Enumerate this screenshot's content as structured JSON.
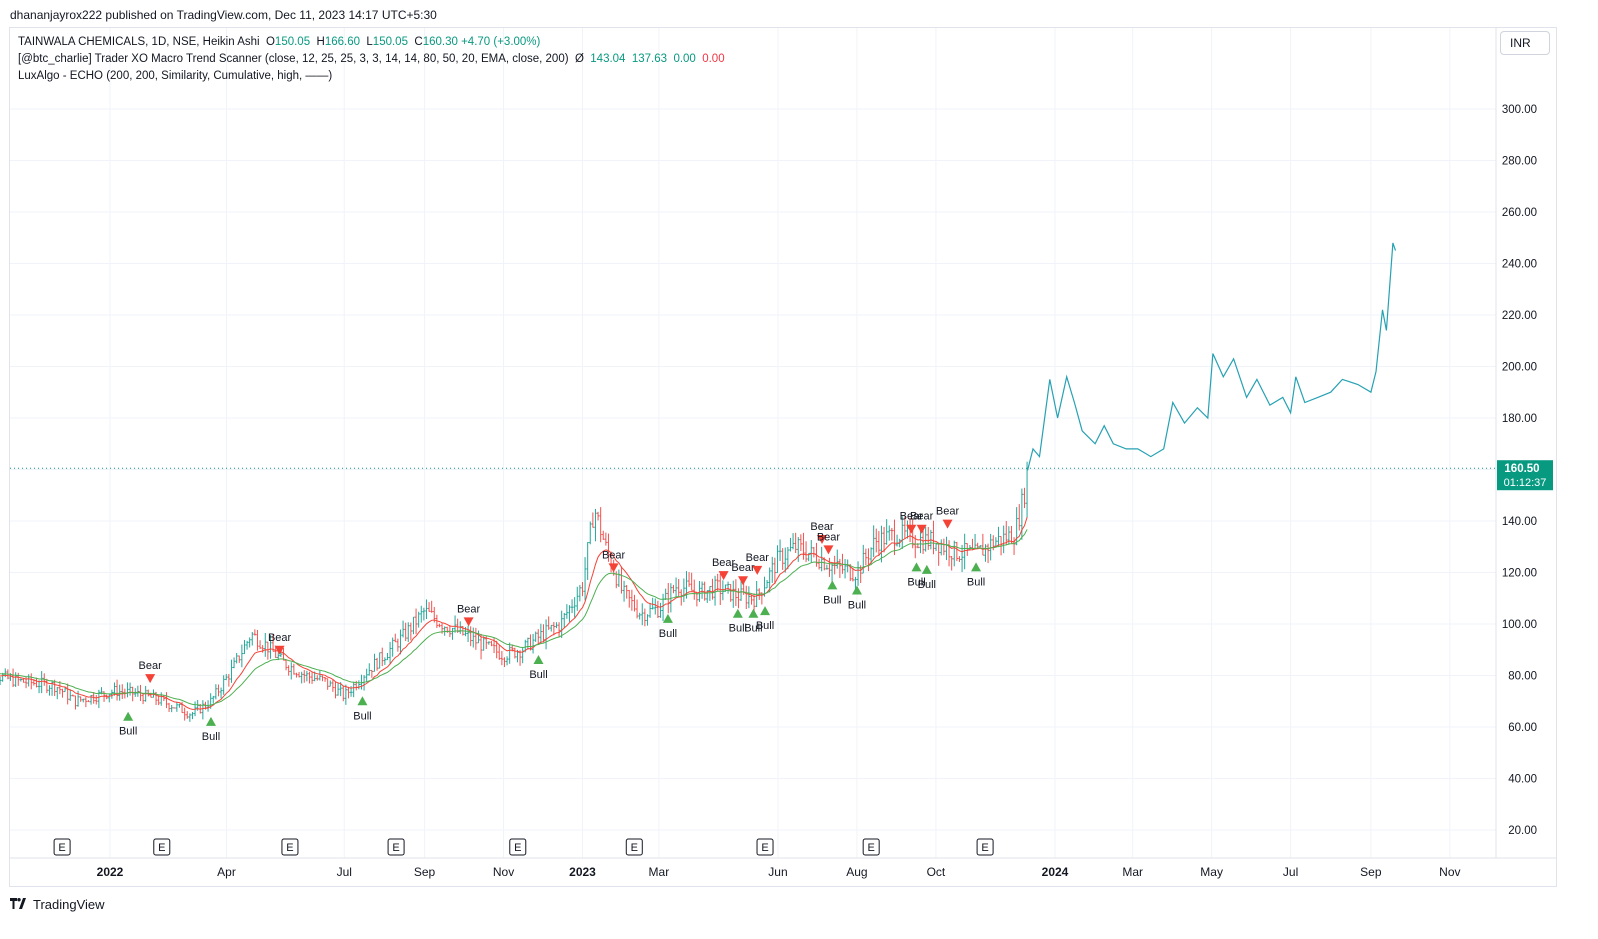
{
  "header": {
    "published_text": "dhananjayrox222 published on TradingView.com, Dec 11, 2023 14:17 UTC+5:30"
  },
  "legend": {
    "symbol_line": {
      "prefix": "TAINWALA CHEMICALS, 1D, NSE, Heikin Ashi",
      "o_label": "O",
      "o_value": "150.05",
      "h_label": "H",
      "h_value": "166.60",
      "l_label": "L",
      "l_value": "150.05",
      "c_label": "C",
      "c_value": "160.30",
      "change": "+4.70 (+3.00%)"
    },
    "indicator1": {
      "text": "[@btc_charlie] Trader XO Macro Trend Scanner (close, 12, 25, 25, 3, 3, 14, 14, 80, 50, 20, EMA, close, 200)",
      "symbol": "Ø",
      "v1": "143.04",
      "v2": "137.63",
      "v3": "0.00",
      "v4": "0.00"
    },
    "indicator2": {
      "text": "LuxAlgo - ECHO (200, 200, Similarity, Cumulative, high, ——)"
    }
  },
  "currency_selector": "INR",
  "price_label": {
    "price": "160.50",
    "countdown": "01:12:37"
  },
  "footer": {
    "logo_mark": "𝟭𝟳",
    "logo_text": "TradingView"
  },
  "colors": {
    "up": "#26a69a",
    "down": "#ef5350",
    "ema_fast": "#f44336",
    "ema_slow": "#4caf50",
    "echo": "#26a1b3",
    "grid": "#f0f3fa",
    "current_price": "#089981",
    "bull": "#4caf50",
    "bear": "#f44336"
  },
  "chart_data": {
    "type": "line",
    "title": "TAINWALA CHEMICALS, 1D, NSE, Heikin Ashi",
    "y_axis": {
      "ticks": [
        20,
        40,
        60,
        80,
        100,
        120,
        140,
        160,
        180,
        200,
        220,
        240,
        260,
        280,
        300
      ],
      "tick_labels": [
        "20.00",
        "40.00",
        "60.00",
        "80.00",
        "100.00",
        "120.00",
        "140.00",
        "160.00",
        "180.00",
        "200.00",
        "220.00",
        "240.00",
        "260.00",
        "280.00",
        "300.00"
      ],
      "range": [
        10,
        325
      ],
      "current_price": 160.5
    },
    "x_axis": {
      "labels": [
        {
          "text": "2022",
          "date": "2022-01-01",
          "bold": true
        },
        {
          "text": "Apr",
          "date": "2022-04-01",
          "bold": false
        },
        {
          "text": "Jul",
          "date": "2022-07-01",
          "bold": false
        },
        {
          "text": "Sep",
          "date": "2022-09-01",
          "bold": false
        },
        {
          "text": "Nov",
          "date": "2022-11-01",
          "bold": false
        },
        {
          "text": "2023",
          "date": "2023-01-01",
          "bold": true
        },
        {
          "text": "Mar",
          "date": "2023-03-01",
          "bold": false
        },
        {
          "text": "Jun",
          "date": "2023-06-01",
          "bold": false
        },
        {
          "text": "Aug",
          "date": "2023-08-01",
          "bold": false
        },
        {
          "text": "Oct",
          "date": "2023-10-01",
          "bold": false
        },
        {
          "text": "2024",
          "date": "2024-01-01",
          "bold": true
        },
        {
          "text": "Mar",
          "date": "2024-03-01",
          "bold": false
        },
        {
          "text": "May",
          "date": "2024-05-01",
          "bold": false
        },
        {
          "text": "Jul",
          "date": "2024-07-01",
          "bold": false
        },
        {
          "text": "Sep",
          "date": "2024-09-01",
          "bold": false
        },
        {
          "text": "Nov",
          "date": "2024-11-01",
          "bold": false
        }
      ]
    },
    "earnings_markers": [
      {
        "date": "2021-11-25",
        "label": "E"
      },
      {
        "date": "2022-02-10",
        "label": "E"
      },
      {
        "date": "2022-05-20",
        "label": "E"
      },
      {
        "date": "2022-08-10",
        "label": "E"
      },
      {
        "date": "2022-11-12",
        "label": "E"
      },
      {
        "date": "2023-02-10",
        "label": "E"
      },
      {
        "date": "2023-05-22",
        "label": "E"
      },
      {
        "date": "2023-08-12",
        "label": "E"
      },
      {
        "date": "2023-11-08",
        "label": "E"
      }
    ],
    "series": [
      {
        "name": "TAINWALA CHEMICALS",
        "kind": "heikin-ashi-bars",
        "points": [
          [
            "2021-09-20",
            82
          ],
          [
            "2021-10-05",
            80
          ],
          [
            "2021-10-20",
            78
          ],
          [
            "2021-11-05",
            77
          ],
          [
            "2021-11-20",
            76
          ],
          [
            "2021-12-05",
            70
          ],
          [
            "2021-12-20",
            72
          ],
          [
            "2022-01-05",
            74
          ],
          [
            "2022-01-20",
            73
          ],
          [
            "2022-02-05",
            71
          ],
          [
            "2022-02-20",
            68
          ],
          [
            "2022-03-05",
            65
          ],
          [
            "2022-03-20",
            70
          ],
          [
            "2022-04-05",
            82
          ],
          [
            "2022-04-20",
            96
          ],
          [
            "2022-05-01",
            92
          ],
          [
            "2022-05-15",
            85
          ],
          [
            "2022-06-01",
            80
          ],
          [
            "2022-06-15",
            78
          ],
          [
            "2022-07-01",
            72
          ],
          [
            "2022-07-15",
            80
          ],
          [
            "2022-08-01",
            88
          ],
          [
            "2022-08-15",
            95
          ],
          [
            "2022-09-01",
            105
          ],
          [
            "2022-09-15",
            100
          ],
          [
            "2022-10-01",
            96
          ],
          [
            "2022-10-15",
            92
          ],
          [
            "2022-11-01",
            88
          ],
          [
            "2022-11-15",
            90
          ],
          [
            "2022-12-01",
            96
          ],
          [
            "2022-12-15",
            100
          ],
          [
            "2023-01-01",
            115
          ],
          [
            "2023-01-10",
            145
          ],
          [
            "2023-01-20",
            128
          ],
          [
            "2023-02-01",
            112
          ],
          [
            "2023-02-15",
            104
          ],
          [
            "2023-03-01",
            106
          ],
          [
            "2023-03-15",
            115
          ],
          [
            "2023-04-01",
            112
          ],
          [
            "2023-04-15",
            114
          ],
          [
            "2023-05-01",
            111
          ],
          [
            "2023-05-15",
            110
          ],
          [
            "2023-06-01",
            125
          ],
          [
            "2023-06-15",
            130
          ],
          [
            "2023-07-01",
            126
          ],
          [
            "2023-07-15",
            122
          ],
          [
            "2023-08-01",
            120
          ],
          [
            "2023-08-15",
            132
          ],
          [
            "2023-09-01",
            135
          ],
          [
            "2023-09-15",
            133
          ],
          [
            "2023-10-01",
            132
          ],
          [
            "2023-10-15",
            128
          ],
          [
            "2023-11-01",
            127
          ],
          [
            "2023-11-15",
            132
          ],
          [
            "2023-12-01",
            135
          ],
          [
            "2023-12-08",
            150
          ],
          [
            "2023-12-11",
            160.3
          ]
        ]
      },
      {
        "name": "LuxAlgo - ECHO",
        "kind": "line",
        "points": [
          [
            "2023-12-11",
            160
          ],
          [
            "2023-12-15",
            168
          ],
          [
            "2023-12-20",
            165
          ],
          [
            "2023-12-28",
            195
          ],
          [
            "2024-01-03",
            180
          ],
          [
            "2024-01-10",
            196
          ],
          [
            "2024-01-16",
            186
          ],
          [
            "2024-01-22",
            175
          ],
          [
            "2024-02-01",
            170
          ],
          [
            "2024-02-08",
            177
          ],
          [
            "2024-02-15",
            170
          ],
          [
            "2024-02-25",
            168
          ],
          [
            "2024-03-05",
            168
          ],
          [
            "2024-03-15",
            165
          ],
          [
            "2024-03-25",
            168
          ],
          [
            "2024-04-01",
            186
          ],
          [
            "2024-04-10",
            178
          ],
          [
            "2024-04-20",
            184
          ],
          [
            "2024-04-28",
            180
          ],
          [
            "2024-05-02",
            205
          ],
          [
            "2024-05-10",
            196
          ],
          [
            "2024-05-18",
            203
          ],
          [
            "2024-05-28",
            188
          ],
          [
            "2024-06-05",
            195
          ],
          [
            "2024-06-15",
            185
          ],
          [
            "2024-06-25",
            188
          ],
          [
            "2024-07-01",
            182
          ],
          [
            "2024-07-05",
            196
          ],
          [
            "2024-07-12",
            186
          ],
          [
            "2024-07-22",
            188
          ],
          [
            "2024-08-01",
            190
          ],
          [
            "2024-08-10",
            195
          ],
          [
            "2024-08-22",
            193
          ],
          [
            "2024-09-01",
            190
          ],
          [
            "2024-09-05",
            198
          ],
          [
            "2024-09-10",
            222
          ],
          [
            "2024-09-13",
            214
          ],
          [
            "2024-09-18",
            248
          ],
          [
            "2024-09-20",
            245
          ]
        ]
      }
    ],
    "signals": [
      {
        "date": "2022-01-15",
        "type": "Bull",
        "value": 64
      },
      {
        "date": "2022-02-01",
        "type": "Bear",
        "value": 79
      },
      {
        "date": "2022-03-20",
        "type": "Bull",
        "value": 62
      },
      {
        "date": "2022-05-12",
        "type": "Bear",
        "value": 90
      },
      {
        "date": "2022-07-15",
        "type": "Bull",
        "value": 70
      },
      {
        "date": "2022-10-05",
        "type": "Bear",
        "value": 101
      },
      {
        "date": "2022-11-28",
        "type": "Bull",
        "value": 86
      },
      {
        "date": "2023-01-25",
        "type": "Bear",
        "value": 122
      },
      {
        "date": "2023-03-08",
        "type": "Bull",
        "value": 102
      },
      {
        "date": "2023-04-20",
        "type": "Bear",
        "value": 119
      },
      {
        "date": "2023-05-01",
        "type": "Bull",
        "value": 104
      },
      {
        "date": "2023-05-05",
        "type": "Bear",
        "value": 117
      },
      {
        "date": "2023-05-13",
        "type": "Bull",
        "value": 104
      },
      {
        "date": "2023-05-16",
        "type": "Bear",
        "value": 121
      },
      {
        "date": "2023-05-22",
        "type": "Bull",
        "value": 105
      },
      {
        "date": "2023-07-05",
        "type": "Bear",
        "value": 133
      },
      {
        "date": "2023-07-10",
        "type": "Bear",
        "value": 129
      },
      {
        "date": "2023-07-13",
        "type": "Bull",
        "value": 115
      },
      {
        "date": "2023-08-01",
        "type": "Bull",
        "value": 113
      },
      {
        "date": "2023-09-12",
        "type": "Bear",
        "value": 137
      },
      {
        "date": "2023-09-16",
        "type": "Bull",
        "value": 122
      },
      {
        "date": "2023-09-20",
        "type": "Bear",
        "value": 137
      },
      {
        "date": "2023-09-24",
        "type": "Bull",
        "value": 121
      },
      {
        "date": "2023-10-10",
        "type": "Bear",
        "value": 139
      },
      {
        "date": "2023-11-01",
        "type": "Bull",
        "value": 122
      }
    ]
  }
}
